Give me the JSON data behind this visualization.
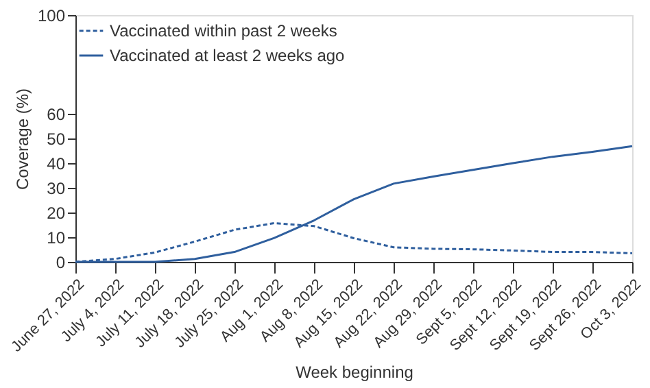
{
  "chart_data": {
    "type": "line",
    "xlabel": "Week beginning",
    "ylabel": "Coverage (%)",
    "categories": [
      "June 27, 2022",
      "July 4, 2022",
      "July 11, 2022",
      "July 18, 2022",
      "July 25, 2022",
      "Aug 1, 2022",
      "Aug 8, 2022",
      "Aug 15, 2022",
      "Aug 22, 2022",
      "Aug 29, 2022",
      "Sept 5, 2022",
      "Sept 12, 2022",
      "Sept 19, 2022",
      "Sept 26, 2022",
      "Oct 3, 2022"
    ],
    "series": [
      {
        "name": "Vaccinated within past 2 weeks",
        "color": "#2f5f9e",
        "line_style": "dashed",
        "values": [
          0,
          1.2,
          3.8,
          8.2,
          13,
          15.7,
          14.5,
          9.6,
          5.9,
          5.3,
          5.1,
          4.6,
          4.0,
          4.0,
          3.5
        ]
      },
      {
        "name": "Vaccinated at least 2 weeks ago",
        "color": "#2f5f9e",
        "line_style": "solid",
        "values": [
          0,
          0,
          0,
          1.2,
          4,
          9.7,
          16.8,
          25.4,
          31.7,
          34.6,
          37.3,
          40,
          42.6,
          44.6,
          46.9
        ]
      }
    ],
    "ylim": [
      0,
      100
    ],
    "yticks": [
      0,
      10,
      20,
      30,
      40,
      50,
      60,
      100
    ],
    "grid": false,
    "legend": "top left",
    "marker": "none"
  }
}
